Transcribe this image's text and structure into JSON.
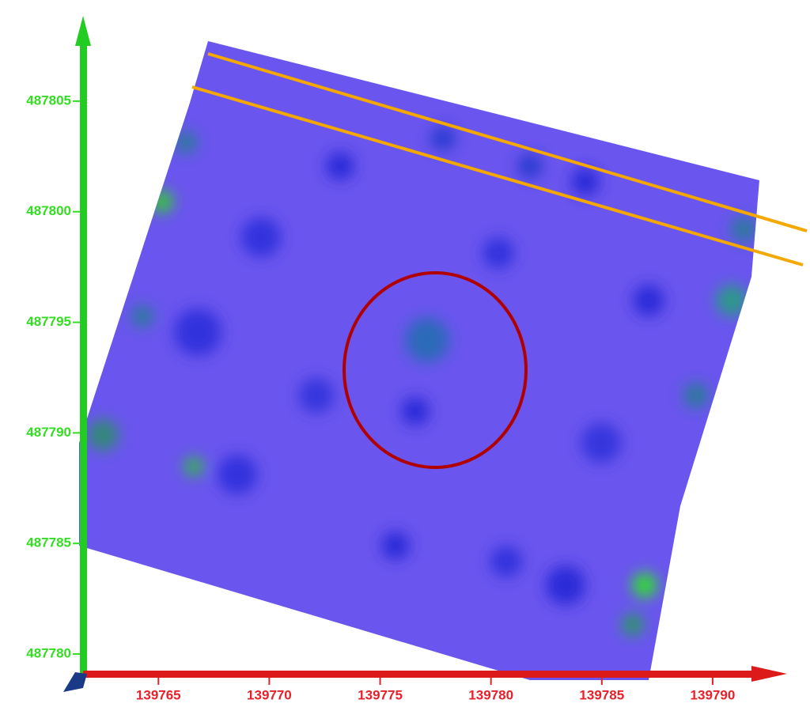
{
  "chart_data": {
    "type": "map",
    "xlim": [
      139761.6,
      139793
    ],
    "xticks": [
      139765,
      139770,
      139775,
      139780,
      139785,
      139790
    ],
    "x_color": "#e8202a",
    "ylim": [
      487779,
      487808.5
    ],
    "yticks": [
      487780,
      487785,
      487790,
      487795,
      487800,
      487805
    ],
    "y_color": "#33dd22",
    "grid": false
  }
}
